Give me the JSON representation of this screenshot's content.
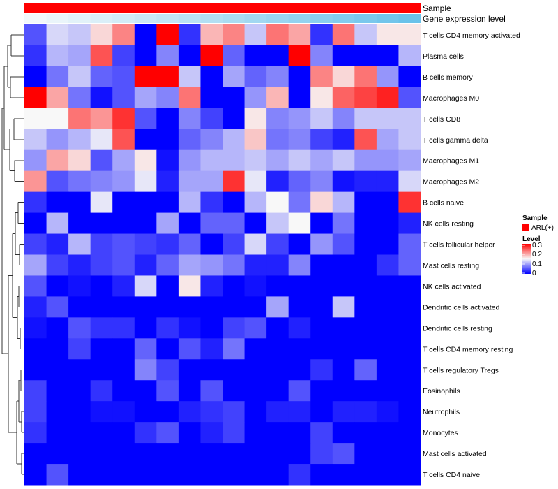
{
  "chart_data": {
    "type": "heatmap",
    "title": "",
    "annotations": [
      {
        "name": "Sample",
        "color": "#ff0000",
        "colors": [
          "#ff0000",
          "#ff0000",
          "#ff0000",
          "#ff0000",
          "#ff0000",
          "#ff0000",
          "#ff0000",
          "#ff0000",
          "#ff0000",
          "#ff0000",
          "#ff0000",
          "#ff0000",
          "#ff0000",
          "#ff0000",
          "#ff0000",
          "#ff0000",
          "#ff0000",
          "#ff0000"
        ]
      },
      {
        "name": "Gene expression level",
        "colors": [
          "#f2f8fb",
          "#eaf5fa",
          "#e2f2f9",
          "#daeff8",
          "#d2ecf7",
          "#cae8f6",
          "#c2e5f5",
          "#bae2f4",
          "#b2dff3",
          "#aadcf2",
          "#a2d8f1",
          "#9ad5f0",
          "#92d2ef",
          "#8acfee",
          "#82cced",
          "#7ac8ec",
          "#72c5eb",
          "#6ac2ea"
        ]
      }
    ],
    "rows": [
      "T cells CD4 memory activated",
      "Plasma cells",
      "B cells memory",
      "Macrophages M0",
      "T cells CD8",
      "T cells gamma delta",
      "Macrophages M1",
      "Macrophages M2",
      "B cells naive",
      "NK cells resting",
      "T cells follicular helper",
      "Mast cells resting",
      "NK cells activated",
      "Dendritic cells activated",
      "Dendritic cells resting",
      "T cells CD4 memory resting",
      "T cells regulatory  Tregs",
      "Eosinophils",
      "Neutrophils",
      "Monocytes",
      "Mast cells activated",
      "T cells CD4 naive"
    ],
    "n_columns": 18,
    "values": [
      [
        0.05,
        0.13,
        0.12,
        0.17,
        0.22,
        0.0,
        0.3,
        0.03,
        0.19,
        0.22,
        0.12,
        0.23,
        0.2,
        0.03,
        0.23,
        0.12,
        0.16,
        0.16
      ],
      [
        0.03,
        0.11,
        0.1,
        0.25,
        0.04,
        0.0,
        0.08,
        0.0,
        0.3,
        0.06,
        0.0,
        0.0,
        0.3,
        0.08,
        0.0,
        0.0,
        0.0,
        0.11
      ],
      [
        0.0,
        0.07,
        0.12,
        0.06,
        0.05,
        0.3,
        0.3,
        0.12,
        0.0,
        0.1,
        0.06,
        0.08,
        0.0,
        0.22,
        0.17,
        0.23,
        0.09,
        0.0
      ],
      [
        0.3,
        0.2,
        0.07,
        0.01,
        0.05,
        0.1,
        0.08,
        0.23,
        0.0,
        0.0,
        0.09,
        0.19,
        0.0,
        0.16,
        0.24,
        0.26,
        0.28,
        0.05
      ],
      [
        0.15,
        0.15,
        0.23,
        0.21,
        0.27,
        0.05,
        0.0,
        0.08,
        0.04,
        0.0,
        0.16,
        0.08,
        0.09,
        0.12,
        0.08,
        0.12,
        0.12,
        0.12
      ],
      [
        0.12,
        0.09,
        0.11,
        0.14,
        0.25,
        0.0,
        0.0,
        0.06,
        0.08,
        0.11,
        0.18,
        0.07,
        0.08,
        0.04,
        0.02,
        0.25,
        0.1,
        0.12
      ],
      [
        0.09,
        0.2,
        0.17,
        0.05,
        0.1,
        0.16,
        0.01,
        0.09,
        0.11,
        0.11,
        0.12,
        0.1,
        0.12,
        0.1,
        0.12,
        0.09,
        0.09,
        0.1
      ],
      [
        0.21,
        0.05,
        0.07,
        0.08,
        0.09,
        0.14,
        0.02,
        0.1,
        0.1,
        0.27,
        0.14,
        0.02,
        0.06,
        0.08,
        0.01,
        0.02,
        0.02,
        0.13
      ],
      [
        0.03,
        0.0,
        0.0,
        0.14,
        0.0,
        0.0,
        0.0,
        0.11,
        0.03,
        0.0,
        0.11,
        0.15,
        0.07,
        0.17,
        0.11,
        0.0,
        0.0,
        0.27
      ],
      [
        0.0,
        0.11,
        0.0,
        0.0,
        0.0,
        0.0,
        0.1,
        0.0,
        0.06,
        0.06,
        0.0,
        0.12,
        0.15,
        0.0,
        0.07,
        0.0,
        0.0,
        0.02
      ],
      [
        0.04,
        0.02,
        0.11,
        0.04,
        0.05,
        0.04,
        0.03,
        0.06,
        0.0,
        0.04,
        0.13,
        0.04,
        0.0,
        0.09,
        0.05,
        0.0,
        0.0,
        0.06
      ],
      [
        0.1,
        0.04,
        0.02,
        0.04,
        0.05,
        0.02,
        0.06,
        0.1,
        0.09,
        0.07,
        0.02,
        0.02,
        0.08,
        0.0,
        0.0,
        0.0,
        0.03,
        0.06
      ],
      [
        0.05,
        0.0,
        0.01,
        0.0,
        0.02,
        0.13,
        0.0,
        0.16,
        0.02,
        0.0,
        0.01,
        0.0,
        0.0,
        0.0,
        0.0,
        0.0,
        0.0,
        0.0
      ],
      [
        0.02,
        0.05,
        0.0,
        0.0,
        0.0,
        0.0,
        0.0,
        0.0,
        0.0,
        0.0,
        0.0,
        0.1,
        0.0,
        0.0,
        0.12,
        0.0,
        0.0,
        0.0
      ],
      [
        0.01,
        0.0,
        0.05,
        0.03,
        0.03,
        0.0,
        0.03,
        0.01,
        0.0,
        0.04,
        0.05,
        0.0,
        0.02,
        0.0,
        0.0,
        0.0,
        0.0,
        0.0
      ],
      [
        0.0,
        0.0,
        0.04,
        0.0,
        0.0,
        0.06,
        0.0,
        0.05,
        0.02,
        0.07,
        0.0,
        0.0,
        0.0,
        0.0,
        0.0,
        0.0,
        0.0,
        0.0
      ],
      [
        0.0,
        0.0,
        0.0,
        0.0,
        0.0,
        0.08,
        0.04,
        0.0,
        0.0,
        0.0,
        0.0,
        0.0,
        0.0,
        0.03,
        0.0,
        0.06,
        0.0,
        0.0
      ],
      [
        0.04,
        0.0,
        0.0,
        0.03,
        0.0,
        0.0,
        0.05,
        0.0,
        0.05,
        0.0,
        0.0,
        0.0,
        0.05,
        0.0,
        0.0,
        0.0,
        0.0,
        0.0
      ],
      [
        0.04,
        0.0,
        0.0,
        0.01,
        0.01,
        0.0,
        0.0,
        0.02,
        0.03,
        0.04,
        0.0,
        0.02,
        0.02,
        0.0,
        0.02,
        0.02,
        0.01,
        0.0
      ],
      [
        0.03,
        0.0,
        0.0,
        0.0,
        0.0,
        0.03,
        0.05,
        0.0,
        0.02,
        0.04,
        0.0,
        0.0,
        0.0,
        0.04,
        0.0,
        0.0,
        0.0,
        0.0
      ],
      [
        0.0,
        0.0,
        0.0,
        0.0,
        0.0,
        0.0,
        0.0,
        0.0,
        0.0,
        0.0,
        0.0,
        0.0,
        0.0,
        0.04,
        0.05,
        0.0,
        0.0,
        0.0
      ],
      [
        0.0,
        0.05,
        0.0,
        0.0,
        0.0,
        0.0,
        0.0,
        0.0,
        0.0,
        0.0,
        0.0,
        0.0,
        0.03,
        0.0,
        0.0,
        0.0,
        0.0,
        0.0
      ]
    ],
    "color_scale": {
      "min": 0,
      "mid": 0.15,
      "max": 0.3,
      "low": "#0000ff",
      "middle": "#f8f8f8",
      "high": "#ff0000"
    },
    "legend": {
      "sample_title": "Sample",
      "sample_entry": "ARL(+)",
      "sample_color": "#ff0000",
      "level_title": "Level",
      "level_ticks": [
        "0.3",
        "0.2",
        "0.1",
        "0"
      ]
    },
    "row_dendrogram": true,
    "legend_position": "right"
  }
}
